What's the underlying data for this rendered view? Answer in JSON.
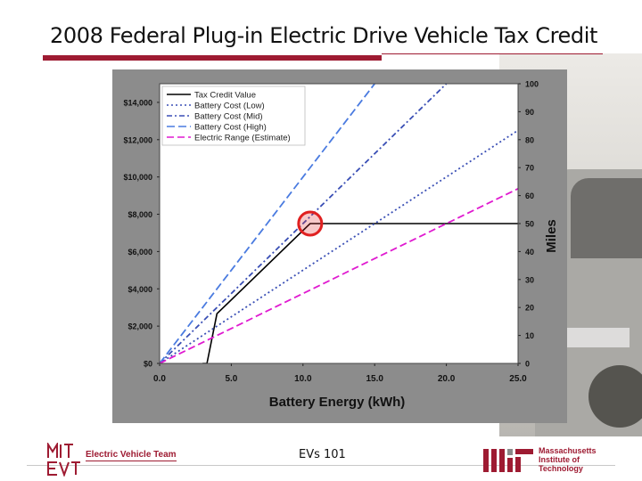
{
  "slide": {
    "title": "2008 Federal Plug-in Electric Drive Vehicle Tax Credit",
    "footer_center": "EVs 101",
    "footer_left_logo": "MIT EVT",
    "footer_left_text": "Electric Vehicle Team",
    "footer_right_logo": "MIT",
    "footer_right_text": [
      "Massachusetts",
      "Institute of",
      "Technology"
    ]
  },
  "colors": {
    "accent": "#9e1b32",
    "panel": "#8c8c8c",
    "plot": "#ffffff"
  },
  "chart_data": {
    "type": "line",
    "xlabel": "Battery Energy (kWh)",
    "y2label": "Miles",
    "xlim": [
      0,
      25
    ],
    "ylim": [
      0,
      15000
    ],
    "y2lim": [
      0,
      100
    ],
    "xticks": [
      "0.0",
      "5.0",
      "10.0",
      "15.0",
      "20.0",
      "25.0"
    ],
    "yticks": [
      "$0",
      "$2,000",
      "$4,000",
      "$6,000",
      "$8,000",
      "$10,000",
      "$12,000",
      "$14,000"
    ],
    "y2ticks": [
      "0",
      "10",
      "20",
      "30",
      "40",
      "50",
      "60",
      "70",
      "80",
      "90",
      "100"
    ],
    "legend_position": "top-left",
    "series": [
      {
        "name": "Tax Credit Value",
        "axis": "left",
        "color": "#000000",
        "dash": "solid",
        "points": [
          [
            3,
            0
          ],
          [
            3.3,
            0
          ],
          [
            4,
            2667
          ],
          [
            10.5,
            7500
          ],
          [
            25,
            7500
          ]
        ]
      },
      {
        "name": "Battery Cost (Low)",
        "axis": "left",
        "color": "#3a4fb5",
        "dash": "2,3",
        "points": [
          [
            0,
            0
          ],
          [
            25,
            12500
          ]
        ]
      },
      {
        "name": "Battery Cost (Mid)",
        "axis": "left",
        "color": "#3a4fb5",
        "dash": "6,3,2,3",
        "points": [
          [
            0,
            0
          ],
          [
            25,
            18750
          ]
        ]
      },
      {
        "name": "Battery Cost (High)",
        "axis": "left",
        "color": "#4a7be0",
        "dash": "9,4",
        "points": [
          [
            0,
            0
          ],
          [
            25,
            25000
          ]
        ]
      },
      {
        "name": "Electric Range (Estimate)",
        "axis": "right",
        "color": "#e01ad0",
        "dash": "8,4",
        "points": [
          [
            0,
            0
          ],
          [
            25,
            62.5
          ]
        ]
      }
    ],
    "annotations": [
      {
        "type": "circle",
        "color": "#e02020",
        "x": 10.5,
        "y": 7500
      }
    ]
  }
}
